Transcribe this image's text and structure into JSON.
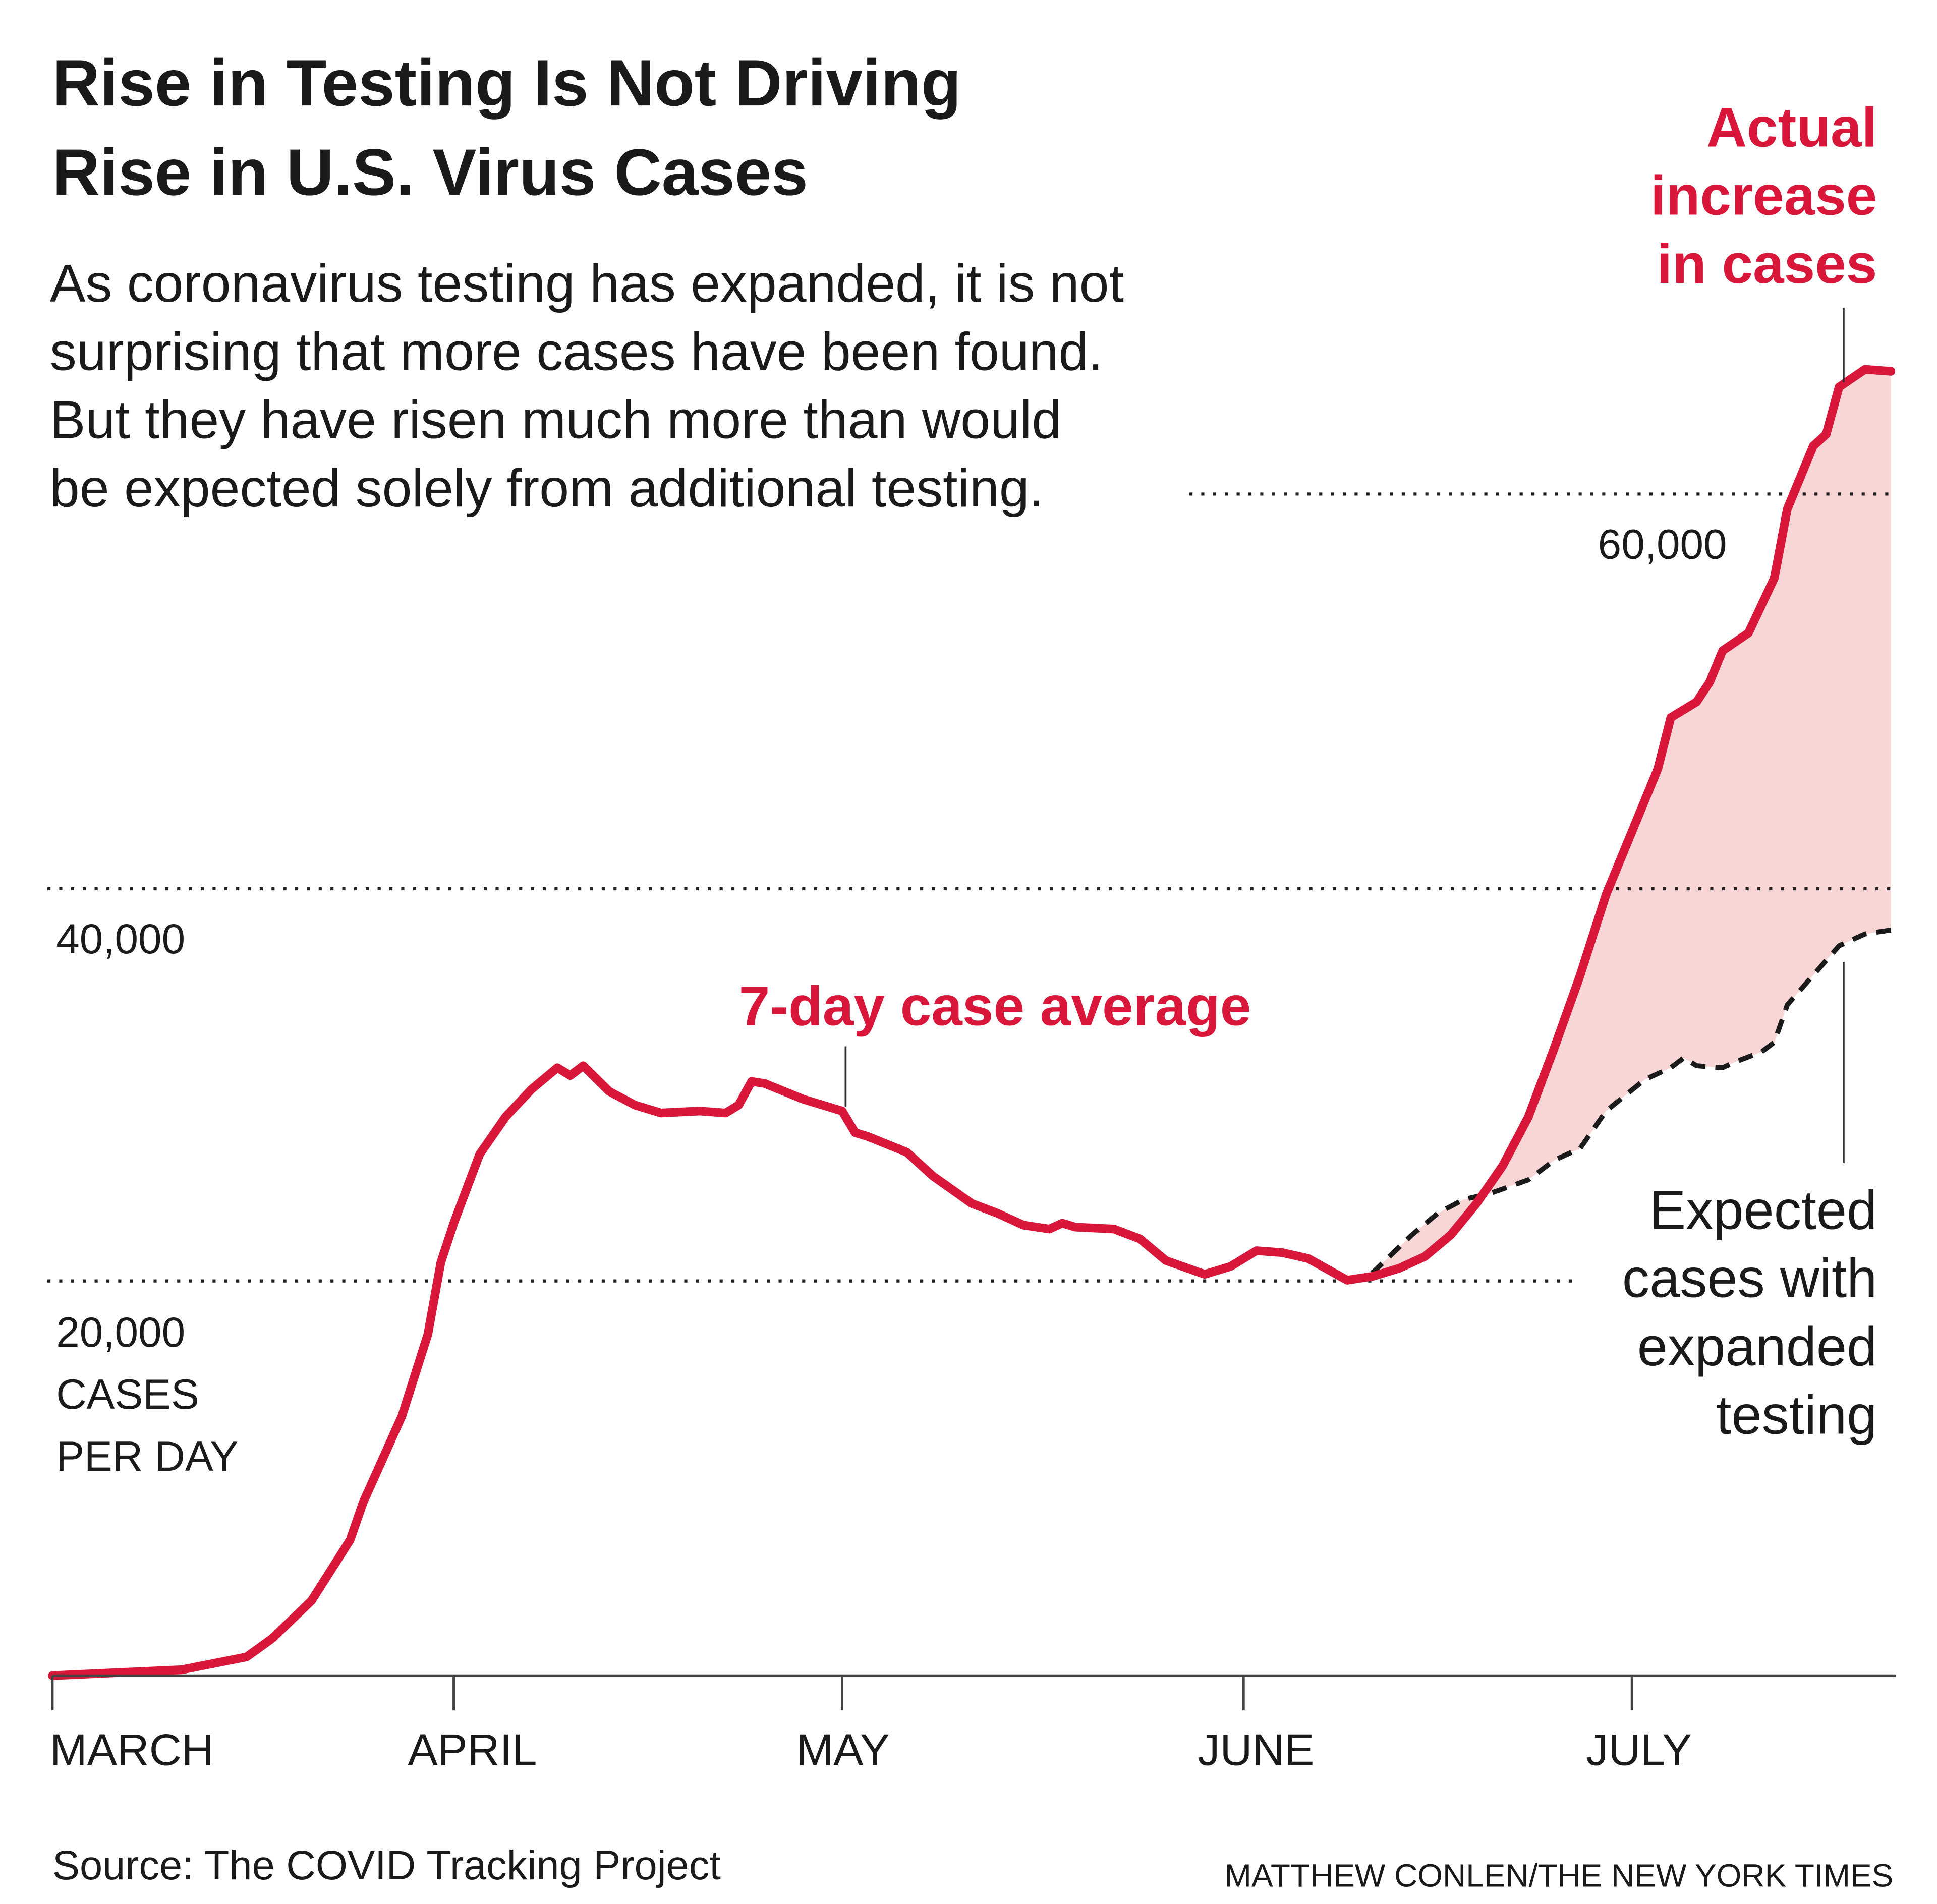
{
  "title_lines": [
    "Rise in Testing Is Not Driving",
    "Rise in U.S. Virus Cases"
  ],
  "subtitle_lines": [
    "As coronavirus testing has expanded, it is not",
    "surprising that more cases have been found.",
    "But they have risen much more than would",
    "be expected solely from additional testing."
  ],
  "source": "Source: The COVID Tracking Project",
  "credit": "MATTHEW CONLEN/THE NEW YORK TIMES",
  "colors": {
    "actual": "#d8173a",
    "gap_fill": "#f9d6d6",
    "expected": "#1a1a1a"
  },
  "chart_data": {
    "type": "line",
    "ylabel": "CASES PER DAY",
    "ylim": [
      0,
      70000
    ],
    "yticks": [
      {
        "value": 20000,
        "label": "20,000"
      },
      {
        "value": 40000,
        "label": "40,000"
      },
      {
        "value": 60000,
        "label": "60,000"
      }
    ],
    "yunit_lines": [
      "CASES",
      "PER DAY"
    ],
    "xticks": [
      {
        "date": "Mar 1",
        "label": "MARCH"
      },
      {
        "date": "Apr 1",
        "label": "APRIL"
      },
      {
        "date": "May 1",
        "label": "MAY"
      },
      {
        "date": "Jun 1",
        "label": "JUNE"
      },
      {
        "date": "Jul 1",
        "label": "JULY"
      }
    ],
    "xlim": [
      "Mar 1",
      "Jul 21"
    ],
    "grid": "dotted horizontal",
    "series": [
      {
        "name": "7-day case average",
        "style": "solid",
        "points": [
          [
            "Mar 1",
            0
          ],
          [
            "Mar 11",
            300
          ],
          [
            "Mar 16",
            950
          ],
          [
            "Mar 18",
            1900
          ],
          [
            "Mar 21",
            3800
          ],
          [
            "Mar 24",
            6900
          ],
          [
            "Mar 25",
            8800
          ],
          [
            "Mar 28",
            13200
          ],
          [
            "Mar 30",
            17350
          ],
          [
            "Mar 31",
            21000
          ],
          [
            "Apr 1",
            23000
          ],
          [
            "Apr 3",
            26500
          ],
          [
            "Apr 5",
            28400
          ],
          [
            "Apr 7",
            29800
          ],
          [
            "Apr 9",
            30900
          ],
          [
            "Apr 10",
            30500
          ],
          [
            "Apr 11",
            31000
          ],
          [
            "Apr 13",
            29700
          ],
          [
            "Apr 15",
            29000
          ],
          [
            "Apr 17",
            28600
          ],
          [
            "Apr 20",
            28700
          ],
          [
            "Apr 22",
            28600
          ],
          [
            "Apr 23",
            29000
          ],
          [
            "Apr 24",
            30200
          ],
          [
            "Apr 25",
            30100
          ],
          [
            "Apr 28",
            29300
          ],
          [
            "May 1",
            28700
          ],
          [
            "May 2",
            27600
          ],
          [
            "May 3",
            27400
          ],
          [
            "May 6",
            26600
          ],
          [
            "May 8",
            25400
          ],
          [
            "May 11",
            24000
          ],
          [
            "May 13",
            23500
          ],
          [
            "May 15",
            22900
          ],
          [
            "May 17",
            22700
          ],
          [
            "May 18",
            23000
          ],
          [
            "May 19",
            22800
          ],
          [
            "May 22",
            22700
          ],
          [
            "May 24",
            22200
          ],
          [
            "May 26",
            21100
          ],
          [
            "May 29",
            20400
          ],
          [
            "May 31",
            20800
          ],
          [
            "Jun 2",
            21600
          ],
          [
            "Jun 4",
            21500
          ],
          [
            "Jun 6",
            21200
          ],
          [
            "Jun 9",
            20100
          ],
          [
            "Jun 11",
            20300
          ],
          [
            "Jun 13",
            20700
          ],
          [
            "Jun 15",
            21300
          ],
          [
            "Jun 17",
            22400
          ],
          [
            "Jun 19",
            24000
          ],
          [
            "Jun 21",
            25900
          ],
          [
            "Jun 23",
            28400
          ],
          [
            "Jun 25",
            31900
          ],
          [
            "Jun 27",
            35600
          ],
          [
            "Jun 29",
            39700
          ],
          [
            "Jul 1",
            42900
          ],
          [
            "Jul 3",
            46100
          ],
          [
            "Jul 4",
            48700
          ],
          [
            "Jul 6",
            49500
          ],
          [
            "Jul 7",
            50500
          ],
          [
            "Jul 8",
            52100
          ],
          [
            "Jul 10",
            53000
          ],
          [
            "Jul 12",
            55800
          ],
          [
            "Jul 13",
            59300
          ],
          [
            "Jul 15",
            62500
          ],
          [
            "Jul 16",
            63100
          ],
          [
            "Jul 17",
            65500
          ],
          [
            "Jul 19",
            66400
          ],
          [
            "Jul 21",
            66300
          ]
        ]
      },
      {
        "name": "Expected cases with expanded testing",
        "style": "dashed",
        "points": [
          [
            "Jun 9",
            20100
          ],
          [
            "Jun 11",
            20500
          ],
          [
            "Jun 14",
            22400
          ],
          [
            "Jun 16",
            23500
          ],
          [
            "Jun 18",
            24200
          ],
          [
            "Jun 20",
            24500
          ],
          [
            "Jun 23",
            25200
          ],
          [
            "Jun 25",
            26200
          ],
          [
            "Jun 27",
            26800
          ],
          [
            "Jun 29",
            28700
          ],
          [
            "Jul 2",
            30300
          ],
          [
            "Jul 4",
            30900
          ],
          [
            "Jul 5",
            31400
          ],
          [
            "Jul 6",
            31000
          ],
          [
            "Jul 8",
            30900
          ],
          [
            "Jul 9",
            31200
          ],
          [
            "Jul 11",
            31700
          ],
          [
            "Jul 12",
            32200
          ],
          [
            "Jul 13",
            34100
          ],
          [
            "Jul 15",
            35600
          ],
          [
            "Jul 17",
            37100
          ],
          [
            "Jul 19",
            37700
          ],
          [
            "Jul 21",
            37900
          ]
        ]
      }
    ],
    "annotations": {
      "series_label": "7-day case average",
      "actual_lines": [
        "Actual",
        "increase",
        "in cases"
      ],
      "expected_lines": [
        "Expected",
        "cases with",
        "expanded",
        "testing"
      ]
    }
  }
}
